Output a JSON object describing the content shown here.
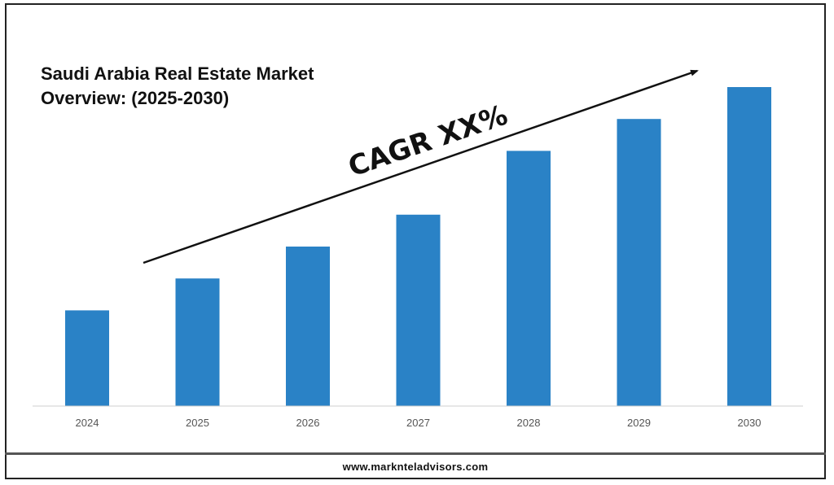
{
  "chart_data": {
    "type": "bar",
    "title_lines": [
      "Saudi Arabia Real Estate Market",
      "Overview: (2025-2030)"
    ],
    "categories": [
      "2024",
      "2025",
      "2026",
      "2027",
      "2028",
      "2029",
      "2030"
    ],
    "values": [
      30,
      40,
      50,
      60,
      80,
      90,
      100
    ],
    "ylim": [
      0,
      100
    ],
    "bar_color": "#2a82c6",
    "annotation": "CAGR XX%",
    "grid": false,
    "legend": "none"
  },
  "footer": {
    "url": "www.marknteladvisors.com"
  }
}
